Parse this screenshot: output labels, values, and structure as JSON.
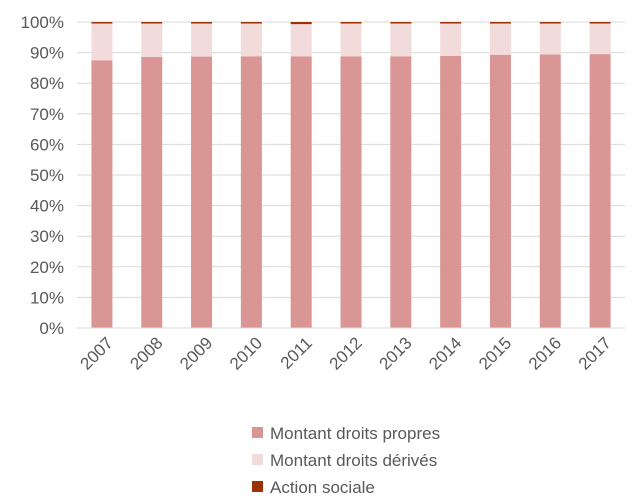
{
  "chart_data": {
    "type": "bar",
    "stacked": true,
    "percent_stacked": true,
    "categories": [
      "2007",
      "2008",
      "2009",
      "2010",
      "2011",
      "2012",
      "2013",
      "2014",
      "2015",
      "2016",
      "2017"
    ],
    "series": [
      {
        "name": "Montant droits propres",
        "color": "#d99694",
        "values": [
          87.5,
          88.6,
          88.7,
          88.8,
          88.8,
          88.8,
          88.8,
          88.9,
          89.3,
          89.4,
          89.5
        ]
      },
      {
        "name": "Montant droits dérivés",
        "color": "#f2dcdb",
        "values": [
          12.0,
          10.9,
          10.8,
          10.7,
          10.5,
          10.7,
          10.7,
          10.6,
          10.2,
          10.1,
          10.0
        ]
      },
      {
        "name": "Action sociale",
        "color": "#9c3302",
        "values": [
          0.5,
          0.5,
          0.5,
          0.5,
          0.7,
          0.5,
          0.5,
          0.5,
          0.5,
          0.5,
          0.5
        ]
      }
    ],
    "ylim": [
      0,
      100
    ],
    "yticks": [
      "0%",
      "10%",
      "20%",
      "30%",
      "40%",
      "50%",
      "60%",
      "70%",
      "80%",
      "90%",
      "100%"
    ],
    "grid": true,
    "legend_position": "bottom"
  }
}
